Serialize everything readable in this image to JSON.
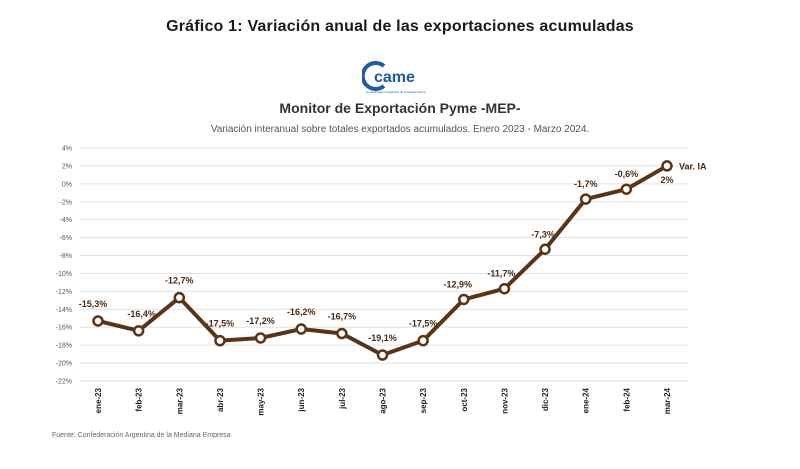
{
  "figure_title": "Gráfico 1: Variación anual de las exportaciones acumuladas",
  "logo": {
    "text": "came",
    "subtext": "Confederación Argentina de la Mediana Empresa",
    "color": "#1f5aa8"
  },
  "source": "Fuente: Confederación Argentina de la Mediana Empresa",
  "colors": {
    "line": "#5b3413",
    "marker_fill": "#ffffff",
    "grid": "#e2e2e2"
  },
  "chart_data": {
    "type": "line",
    "title": "Monitor de Exportación Pyme -MEP-",
    "subtitle": "Variación interanual sobre totales exportados acumulados. Enero 2023 - Marzo 2024.",
    "xlabel": "",
    "ylabel": "",
    "ylim": [
      -22,
      4
    ],
    "y_ticks": [
      4,
      2,
      0,
      -2,
      -4,
      -6,
      -8,
      -10,
      -12,
      -14,
      -16,
      -18,
      -20,
      -22
    ],
    "y_tick_labels": [
      "4%",
      "2%",
      "0%",
      "-2%",
      "-4%",
      "-6%",
      "-8%",
      "-10%",
      "-12%",
      "-14%",
      "-16%",
      "-18%",
      "-20%",
      "-22%"
    ],
    "grid": true,
    "categories": [
      "ene-23",
      "feb-23",
      "mar-23",
      "abr-23",
      "may-23",
      "jun-23",
      "jul-23",
      "ago-23",
      "sep-23",
      "oct-23",
      "nov-23",
      "dic-23",
      "ene-24",
      "feb-24",
      "mar-24"
    ],
    "series": [
      {
        "name": "Var. IA",
        "values": [
          -15.3,
          -16.4,
          -12.7,
          -17.5,
          -17.2,
          -16.2,
          -16.7,
          -19.1,
          -17.5,
          -12.9,
          -11.7,
          -7.3,
          -1.7,
          -0.6,
          2
        ],
        "labels": [
          "-15,3%",
          "-16,4%",
          "-12,7%",
          "-17,5%",
          "-17,2%",
          "-16,2%",
          "-16,7%",
          "-19,1%",
          "-17,5%",
          "-12,9%",
          "-11,7%",
          "-7,3%",
          "-1,7%",
          "-0,6%",
          "2%"
        ]
      }
    ],
    "legend": "end-of-line"
  }
}
